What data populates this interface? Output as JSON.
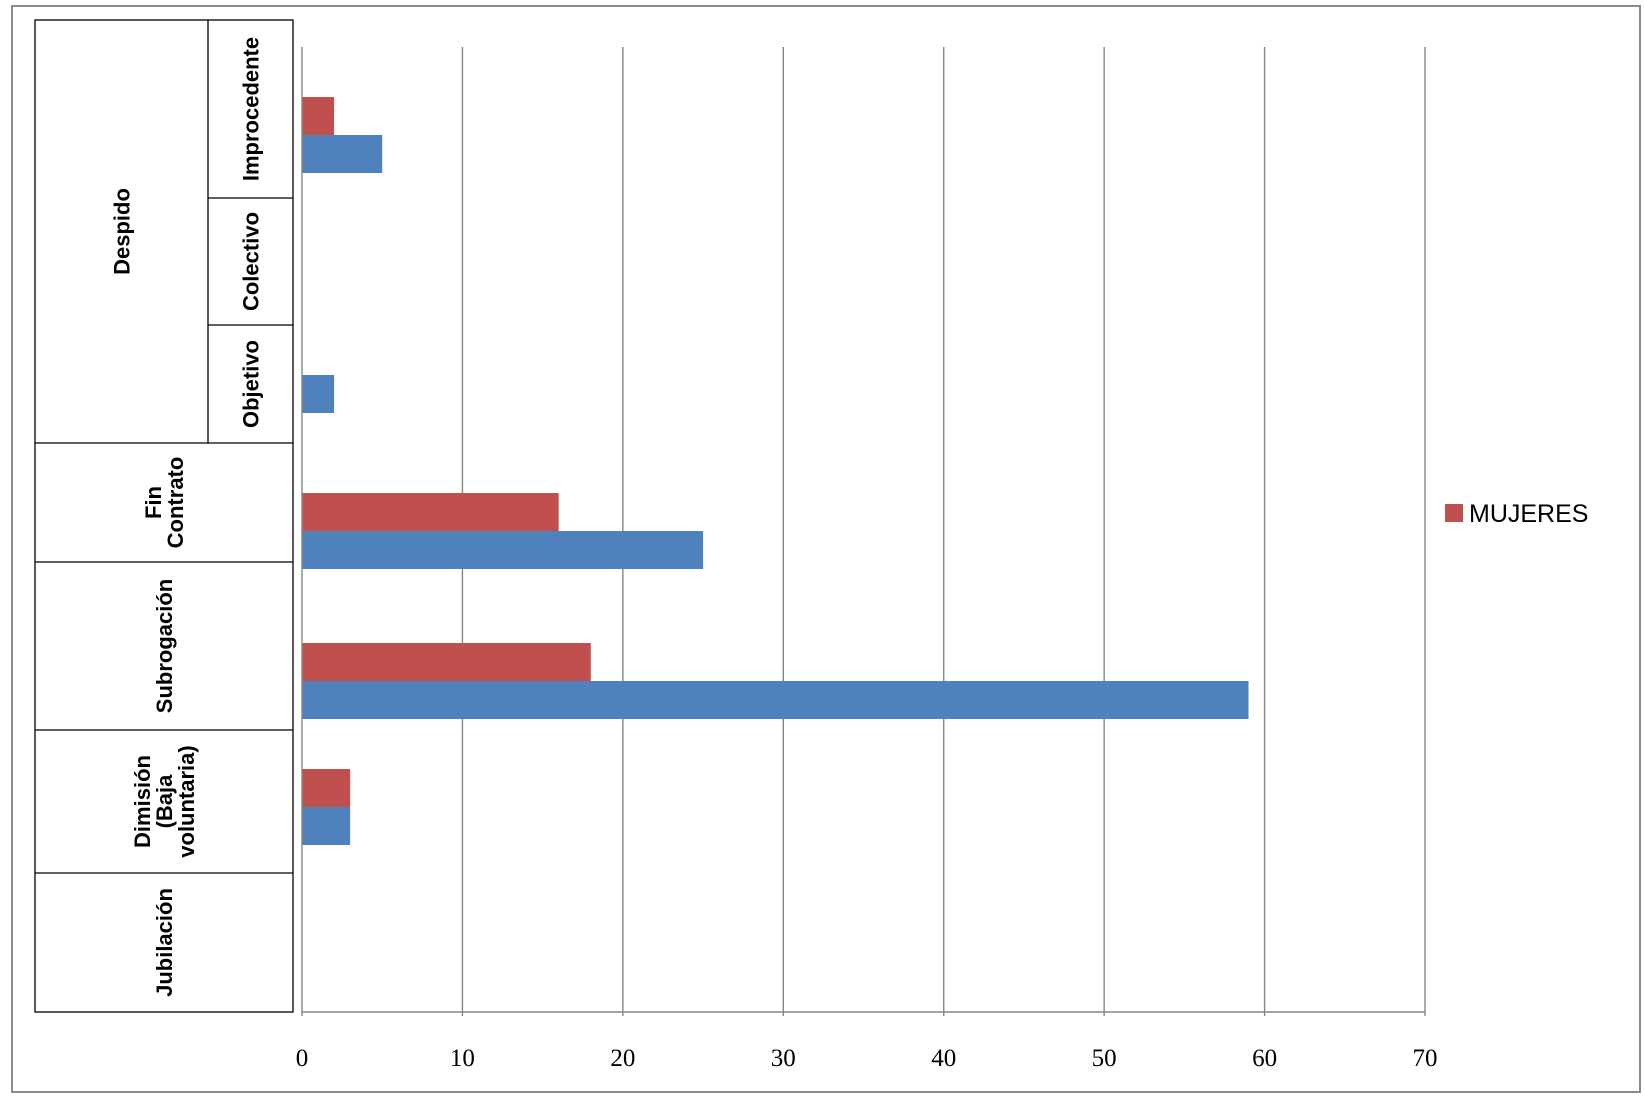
{
  "chart_data": {
    "type": "bar",
    "orientation": "horizontal",
    "title": "",
    "xlabel": "",
    "ylabel": "",
    "xlim": [
      0,
      70
    ],
    "x_ticks": [
      0,
      10,
      20,
      30,
      40,
      50,
      60,
      70
    ],
    "grid": true,
    "legend_position": "right",
    "categories": [
      {
        "group": "Despido",
        "label": "Improcedente"
      },
      {
        "group": "Despido",
        "label": "Colectivo"
      },
      {
        "group": "Despido",
        "label": "Objetivo"
      },
      {
        "group": "",
        "label": "Fin Contrato"
      },
      {
        "group": "",
        "label": "Subrogación"
      },
      {
        "group": "",
        "label": "Dimisión (Baja voluntaria)"
      },
      {
        "group": "",
        "label": "Jubilación"
      }
    ],
    "category_lines": [
      [
        "Improcedente"
      ],
      [
        "Colectivo"
      ],
      [
        "Objetivo"
      ],
      [
        "Fin",
        "Contrato"
      ],
      [
        "Subrogación"
      ],
      [
        "Dimisión",
        "(Baja",
        "voluntaria)"
      ],
      [
        "Jubilación"
      ]
    ],
    "group_label": "Despido",
    "series": [
      {
        "name": "MUJERES",
        "color": "#c0504d",
        "values": [
          2,
          0,
          0,
          16,
          18,
          3,
          0
        ]
      },
      {
        "name": "",
        "color": "#4f81bd",
        "values": [
          5,
          0,
          2,
          25,
          59,
          3,
          0
        ]
      }
    ]
  }
}
